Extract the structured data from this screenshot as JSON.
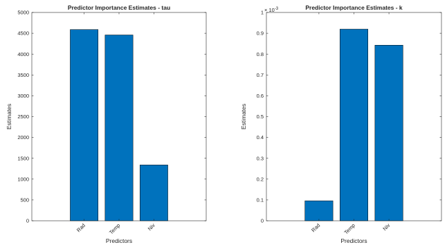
{
  "chart_data": [
    {
      "type": "bar",
      "title": "Predictor Importance Estimates - tau",
      "xlabel": "Predictors",
      "ylabel": "Estimates",
      "categories": [
        "Rad",
        "Temp",
        "Niv"
      ],
      "values": [
        4590,
        4460,
        1340
      ],
      "ylim": [
        0,
        5000
      ],
      "yticks": [
        0,
        500,
        1000,
        1500,
        2000,
        2500,
        3000,
        3500,
        4000,
        4500,
        5000
      ],
      "ytick_labels": [
        "0",
        "500",
        "1000",
        "1500",
        "2000",
        "2500",
        "3000",
        "3500",
        "4000",
        "4500",
        "5000"
      ],
      "y_multiplier": "",
      "grid": false,
      "bar_color": "#0072BD"
    },
    {
      "type": "bar",
      "title": "Predictor Importance Estimates - k",
      "xlabel": "Predictors",
      "ylabel": "Estimates",
      "categories": [
        "Rad",
        "Temp",
        "Niv"
      ],
      "values": [
        9.6e-05,
        0.00092,
        0.000843
      ],
      "ylim": [
        0,
        0.001
      ],
      "yticks": [
        0,
        0.0001,
        0.0002,
        0.0003,
        0.0004,
        0.0005,
        0.0006,
        0.0007,
        0.0008,
        0.0009,
        0.001
      ],
      "ytick_labels": [
        "0",
        "0.1",
        "0.2",
        "0.3",
        "0.4",
        "0.5",
        "0.6",
        "0.7",
        "0.8",
        "0.9",
        "1"
      ],
      "y_multiplier": "× 10",
      "y_multiplier_exp": "-3",
      "grid": false,
      "bar_color": "#0072BD"
    }
  ]
}
